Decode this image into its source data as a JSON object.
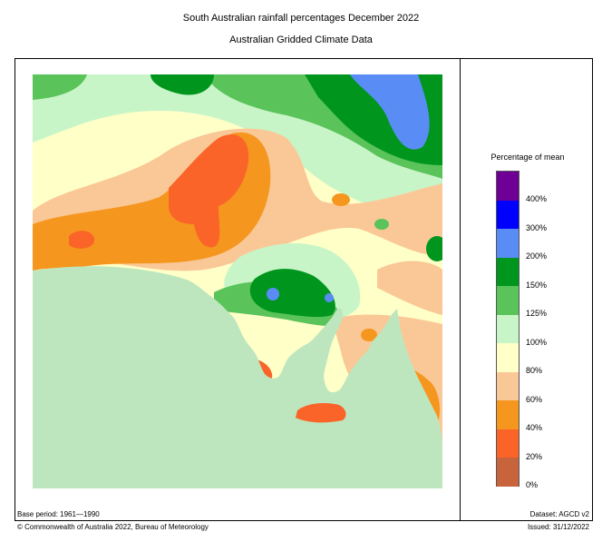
{
  "header": {
    "title": "South Australian rainfall percentages   December 2022",
    "subtitle": "Australian Gridded Climate Data"
  },
  "legend": {
    "title": "Percentage of mean",
    "labels": [
      "400%",
      "300%",
      "200%",
      "150%",
      "125%",
      "100%",
      "80%",
      "60%",
      "40%",
      "20%",
      "0%"
    ],
    "colors": [
      "#6e0096",
      "#0000ff",
      "#5a8cf5",
      "#00961e",
      "#5ac35a",
      "#c8f5c8",
      "#ffffc8",
      "#fac896",
      "#f5961e",
      "#fa6428",
      "#c8643c",
      "#bee6be"
    ]
  },
  "footer": {
    "base_period": "Base period: 1961—1990",
    "dataset": "Dataset: AGCD v2",
    "copyright": "© Commonwealth of Australia 2022, Bureau of Meteorology",
    "issued": "Issued: 31/12/2022"
  }
}
